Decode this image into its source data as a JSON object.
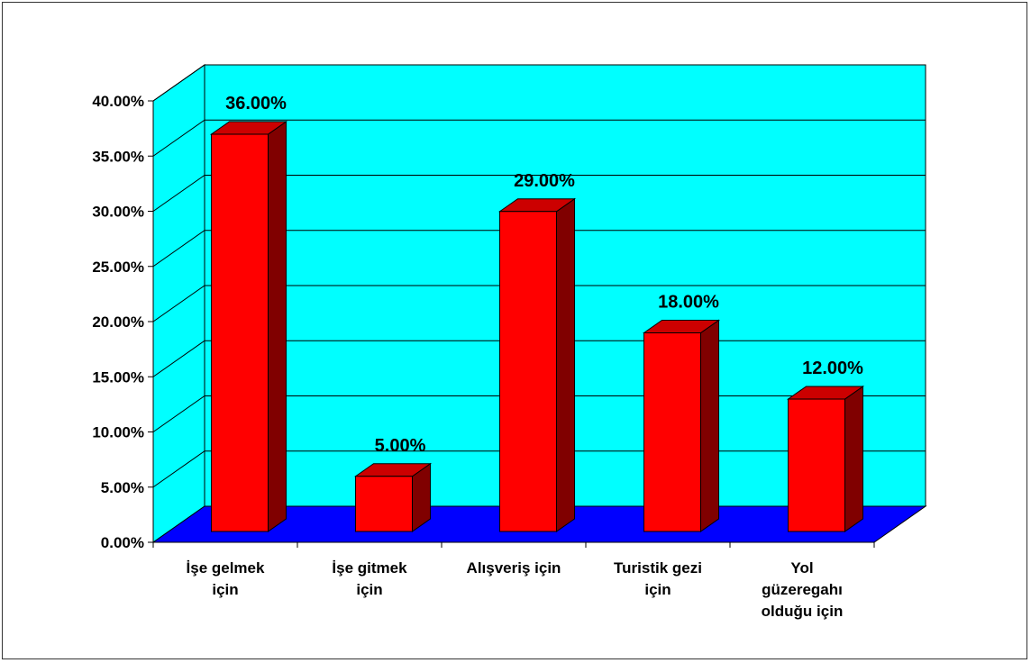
{
  "chart_data": {
    "type": "bar",
    "categories": [
      [
        "İşe gelmek",
        "için"
      ],
      [
        "İşe gitmek",
        "için"
      ],
      [
        "Alışveriş için"
      ],
      [
        "Turistik gezi",
        "için"
      ],
      [
        "Yol",
        "güzeregahı",
        "olduğu için"
      ]
    ],
    "values": [
      36,
      5,
      29,
      18,
      12
    ],
    "data_labels": [
      "36.00%",
      "5.00%",
      "29.00%",
      "18.00%",
      "12.00%"
    ],
    "y_ticks": [
      "0.00%",
      "5.00%",
      "10.00%",
      "15.00%",
      "20.00%",
      "25.00%",
      "30.00%",
      "35.00%",
      "40.00%"
    ],
    "ylim": [
      0,
      40
    ],
    "grid": true,
    "style": "3d",
    "colors": {
      "wall": "#00ffff",
      "floor": "#0000ff",
      "bar_front": "#ff0000",
      "bar_top": "#cc0000",
      "bar_side": "#800000",
      "gridline": "#000000"
    }
  }
}
